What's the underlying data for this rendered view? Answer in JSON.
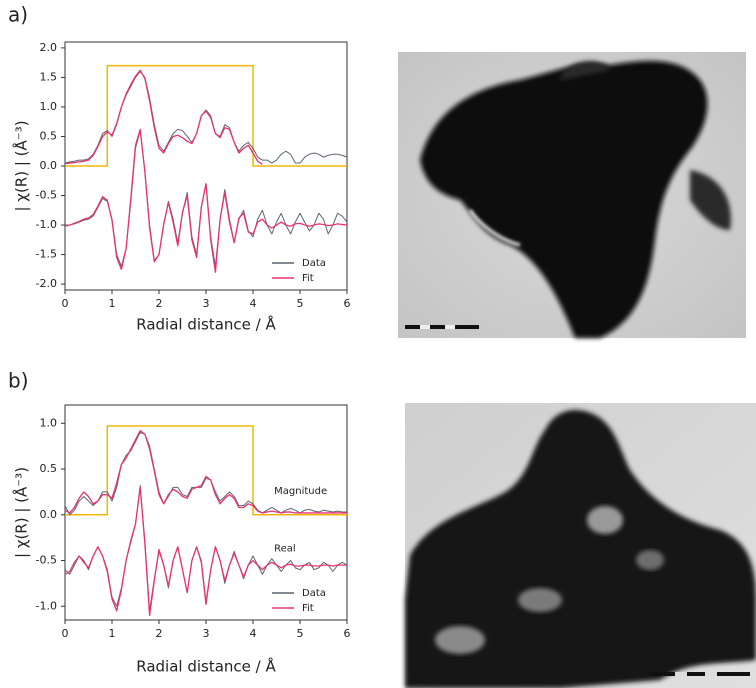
{
  "chart_data": [
    {
      "type": "line",
      "panel_label": "a)",
      "x_label": "Radial distance / Å",
      "y_label": "| χ(R) | (Å⁻³)",
      "xlim": [
        0,
        6
      ],
      "xticks": [
        0,
        1,
        2,
        3,
        4,
        5,
        6
      ],
      "ylim": [
        -2.1,
        2.1
      ],
      "yticks": [
        {
          "value": -2,
          "label": "-2.0"
        },
        -1.5,
        {
          "value": -1,
          "label": "-1.0"
        },
        -0.5,
        {
          "value": 0,
          "label": "0.0"
        },
        0.5,
        {
          "value": 1,
          "label": "1.0"
        },
        1.5,
        {
          "value": 2,
          "label": "2.0"
        }
      ],
      "legend": "lower right",
      "window": {
        "color": "#f2b705",
        "x": [
          0,
          0.9,
          0.9,
          4,
          4,
          6
        ],
        "values": [
          0,
          0,
          1.7,
          1.7,
          0,
          0
        ]
      },
      "x": [
        0,
        0.1,
        0.2,
        0.3,
        0.4,
        0.5,
        0.6,
        0.7,
        0.8,
        0.9,
        1,
        1.1,
        1.2,
        1.3,
        1.4,
        1.5,
        1.6,
        1.7,
        1.8,
        1.9,
        2,
        2.1,
        2.2,
        2.3,
        2.4,
        2.5,
        2.6,
        2.7,
        2.8,
        2.9,
        3,
        3.1,
        3.2,
        3.3,
        3.4,
        3.5,
        3.6,
        3.7,
        3.8,
        3.9,
        4,
        4.1,
        4.2,
        4.3,
        4.4,
        4.5,
        4.6,
        4.7,
        4.8,
        4.9,
        5,
        5.1,
        5.2,
        5.3,
        5.4,
        5.5,
        5.6,
        5.7,
        5.8,
        5.9,
        6
      ],
      "series": [
        {
          "name": "Data",
          "color": "#5b6470",
          "magnitude": [
            0.05,
            0.07,
            0.08,
            0.1,
            0.1,
            0.12,
            0.2,
            0.35,
            0.55,
            0.6,
            0.5,
            0.7,
            1.0,
            1.2,
            1.35,
            1.5,
            1.6,
            1.5,
            1.15,
            0.7,
            0.35,
            0.25,
            0.4,
            0.55,
            0.62,
            0.6,
            0.5,
            0.4,
            0.55,
            0.85,
            0.95,
            0.85,
            0.55,
            0.5,
            0.7,
            0.65,
            0.4,
            0.25,
            0.35,
            0.4,
            0.3,
            0.15,
            0.1,
            0.1,
            0.05,
            0.1,
            0.2,
            0.25,
            0.2,
            0.05,
            0.05,
            0.15,
            0.2,
            0.22,
            0.2,
            0.15,
            0.18,
            0.2,
            0.2,
            0.18,
            0.15
          ],
          "real": [
            -1.0,
            -1.0,
            -0.98,
            -0.95,
            -0.92,
            -0.9,
            -0.85,
            -0.7,
            -0.55,
            -0.6,
            -0.9,
            -1.5,
            -1.7,
            -1.4,
            -0.6,
            0.3,
            0.6,
            -0.1,
            -1.0,
            -1.6,
            -1.5,
            -1.0,
            -0.6,
            -0.9,
            -1.3,
            -0.8,
            -0.45,
            -1.2,
            -1.5,
            -0.7,
            -0.3,
            -1.2,
            -1.7,
            -0.9,
            -0.4,
            -0.9,
            -1.3,
            -0.9,
            -0.75,
            -1.1,
            -1.2,
            -0.9,
            -0.75,
            -1.0,
            -1.15,
            -0.95,
            -0.8,
            -1.0,
            -1.15,
            -0.95,
            -0.8,
            -0.95,
            -1.1,
            -1.0,
            -0.8,
            -0.9,
            -1.15,
            -1.0,
            -0.8,
            -0.85,
            -0.95
          ]
        },
        {
          "name": "Fit",
          "color": "#e8336f",
          "magnitude": [
            0.04,
            0.05,
            0.06,
            0.07,
            0.08,
            0.1,
            0.18,
            0.33,
            0.5,
            0.58,
            0.52,
            0.72,
            1.0,
            1.22,
            1.38,
            1.52,
            1.62,
            1.48,
            1.1,
            0.65,
            0.3,
            0.22,
            0.38,
            0.5,
            0.52,
            0.48,
            0.42,
            0.38,
            0.55,
            0.85,
            0.93,
            0.82,
            0.55,
            0.48,
            0.65,
            0.62,
            0.4,
            0.22,
            0.3,
            0.35,
            0.22,
            0.08,
            0.03,
            null,
            null,
            null,
            null,
            null,
            null,
            null,
            null,
            null,
            null,
            null,
            null,
            null,
            null,
            null,
            null,
            null,
            null
          ],
          "real": [
            -1.02,
            -1.0,
            -0.97,
            -0.94,
            -0.9,
            -0.88,
            -0.82,
            -0.68,
            -0.52,
            -0.58,
            -0.92,
            -1.55,
            -1.75,
            -1.4,
            -0.55,
            0.35,
            0.62,
            -0.1,
            -1.05,
            -1.62,
            -1.5,
            -0.98,
            -0.62,
            -0.95,
            -1.35,
            -0.78,
            -0.5,
            -1.25,
            -1.55,
            -0.7,
            -0.3,
            -1.25,
            -1.8,
            -0.9,
            -0.45,
            -0.95,
            -1.3,
            -0.88,
            -0.8,
            -1.12,
            -1.15,
            -0.95,
            -0.9,
            -1.0,
            -1.05,
            -1.0,
            -0.95,
            -1.0,
            -1.02,
            -0.98,
            -0.97,
            -1.0,
            -1.02,
            -1.0,
            -0.98,
            -0.99,
            -1.01,
            -1.0,
            -0.98,
            -0.99,
            -1.0
          ]
        }
      ]
    },
    {
      "type": "line",
      "panel_label": "b)",
      "x_label": "Radial distance / Å",
      "y_label": "| χ(R) | (Å⁻³)",
      "xlim": [
        0,
        6
      ],
      "xticks": [
        0,
        1,
        2,
        3,
        4,
        5,
        6
      ],
      "ylim": [
        -1.15,
        1.2
      ],
      "yticks": [
        {
          "value": -1,
          "label": "-1.0"
        },
        -0.5,
        {
          "value": 0,
          "label": "0.0"
        },
        0.5,
        {
          "value": 1,
          "label": "1.0"
        }
      ],
      "legend": "lower right",
      "annotations": [
        "Magnitude",
        "Real"
      ],
      "window": {
        "color": "#f2b705",
        "x": [
          0,
          0.9,
          0.9,
          4,
          4,
          6
        ],
        "values": [
          0,
          0,
          0.97,
          0.97,
          0,
          0
        ]
      },
      "x": [
        0,
        0.1,
        0.2,
        0.3,
        0.4,
        0.5,
        0.6,
        0.7,
        0.8,
        0.9,
        1,
        1.1,
        1.2,
        1.3,
        1.4,
        1.5,
        1.6,
        1.7,
        1.8,
        1.9,
        2,
        2.1,
        2.2,
        2.3,
        2.4,
        2.5,
        2.6,
        2.7,
        2.8,
        2.9,
        3,
        3.1,
        3.2,
        3.3,
        3.4,
        3.5,
        3.6,
        3.7,
        3.8,
        3.9,
        4,
        4.1,
        4.2,
        4.3,
        4.4,
        4.5,
        4.6,
        4.7,
        4.8,
        4.9,
        5,
        5.1,
        5.2,
        5.3,
        5.4,
        5.5,
        5.6,
        5.7,
        5.8,
        5.9,
        6
      ],
      "series": [
        {
          "name": "Data",
          "color": "#5b6470",
          "magnitude": [
            0.1,
            0.0,
            0.05,
            0.15,
            0.2,
            0.15,
            0.1,
            0.15,
            0.25,
            0.25,
            0.15,
            0.3,
            0.55,
            0.65,
            0.7,
            0.8,
            0.9,
            0.88,
            0.75,
            0.5,
            0.25,
            0.12,
            0.2,
            0.3,
            0.3,
            0.22,
            0.2,
            0.3,
            0.3,
            0.3,
            0.4,
            0.38,
            0.25,
            0.15,
            0.2,
            0.25,
            0.2,
            0.1,
            0.1,
            0.15,
            0.12,
            0.05,
            0.02,
            0.05,
            0.08,
            0.05,
            0.02,
            0.05,
            0.07,
            0.05,
            0.02,
            0.05,
            0.06,
            0.04,
            0.03,
            0.05,
            0.04,
            0.03,
            0.04,
            0.03,
            0.03
          ],
          "real": [
            -0.6,
            -0.65,
            -0.55,
            -0.45,
            -0.5,
            -0.6,
            -0.45,
            -0.35,
            -0.45,
            -0.6,
            -0.9,
            -1.0,
            -0.8,
            -0.5,
            -0.3,
            -0.1,
            0.32,
            -0.3,
            -1.05,
            -0.7,
            -0.4,
            -0.55,
            -0.8,
            -0.5,
            -0.35,
            -0.6,
            -0.85,
            -0.5,
            -0.35,
            -0.5,
            -0.95,
            -0.6,
            -0.35,
            -0.5,
            -0.75,
            -0.55,
            -0.4,
            -0.55,
            -0.7,
            -0.55,
            -0.45,
            -0.55,
            -0.65,
            -0.55,
            -0.48,
            -0.55,
            -0.62,
            -0.55,
            -0.5,
            -0.58,
            -0.6,
            -0.55,
            -0.52,
            -0.6,
            -0.58,
            -0.52,
            -0.55,
            -0.62,
            -0.55,
            -0.52,
            -0.55
          ]
        },
        {
          "name": "Fit",
          "color": "#e8336f",
          "magnitude": [
            0.05,
            0.02,
            0.08,
            0.18,
            0.25,
            0.2,
            0.12,
            0.15,
            0.22,
            0.22,
            0.18,
            0.35,
            0.55,
            0.62,
            0.72,
            0.82,
            0.92,
            0.88,
            0.72,
            0.48,
            0.22,
            0.12,
            0.22,
            0.28,
            0.25,
            0.2,
            0.18,
            0.28,
            0.3,
            0.32,
            0.42,
            0.38,
            0.22,
            0.12,
            0.18,
            0.22,
            0.18,
            0.08,
            0.08,
            0.12,
            0.1,
            0.04,
            0.02,
            0.03,
            0.04,
            0.03,
            0.02,
            0.03,
            0.03,
            0.02,
            0.02,
            0.02,
            0.02,
            0.02,
            0.02,
            0.02,
            0.02,
            0.02,
            0.02,
            0.02,
            0.02
          ],
          "real": [
            -0.65,
            -0.62,
            -0.52,
            -0.45,
            -0.52,
            -0.58,
            -0.45,
            -0.35,
            -0.45,
            -0.62,
            -0.92,
            -1.05,
            -0.82,
            -0.5,
            -0.28,
            -0.1,
            0.3,
            -0.32,
            -1.1,
            -0.72,
            -0.38,
            -0.55,
            -0.78,
            -0.5,
            -0.35,
            -0.6,
            -0.85,
            -0.5,
            -0.35,
            -0.52,
            -0.98,
            -0.6,
            -0.35,
            -0.5,
            -0.72,
            -0.55,
            -0.42,
            -0.55,
            -0.68,
            -0.55,
            -0.5,
            -0.55,
            -0.6,
            -0.55,
            -0.52,
            -0.55,
            -0.58,
            -0.55,
            -0.54,
            -0.56,
            -0.56,
            -0.55,
            -0.55,
            -0.56,
            -0.56,
            -0.55,
            -0.55,
            -0.56,
            -0.55,
            -0.55,
            -0.55
          ]
        }
      ]
    }
  ]
}
